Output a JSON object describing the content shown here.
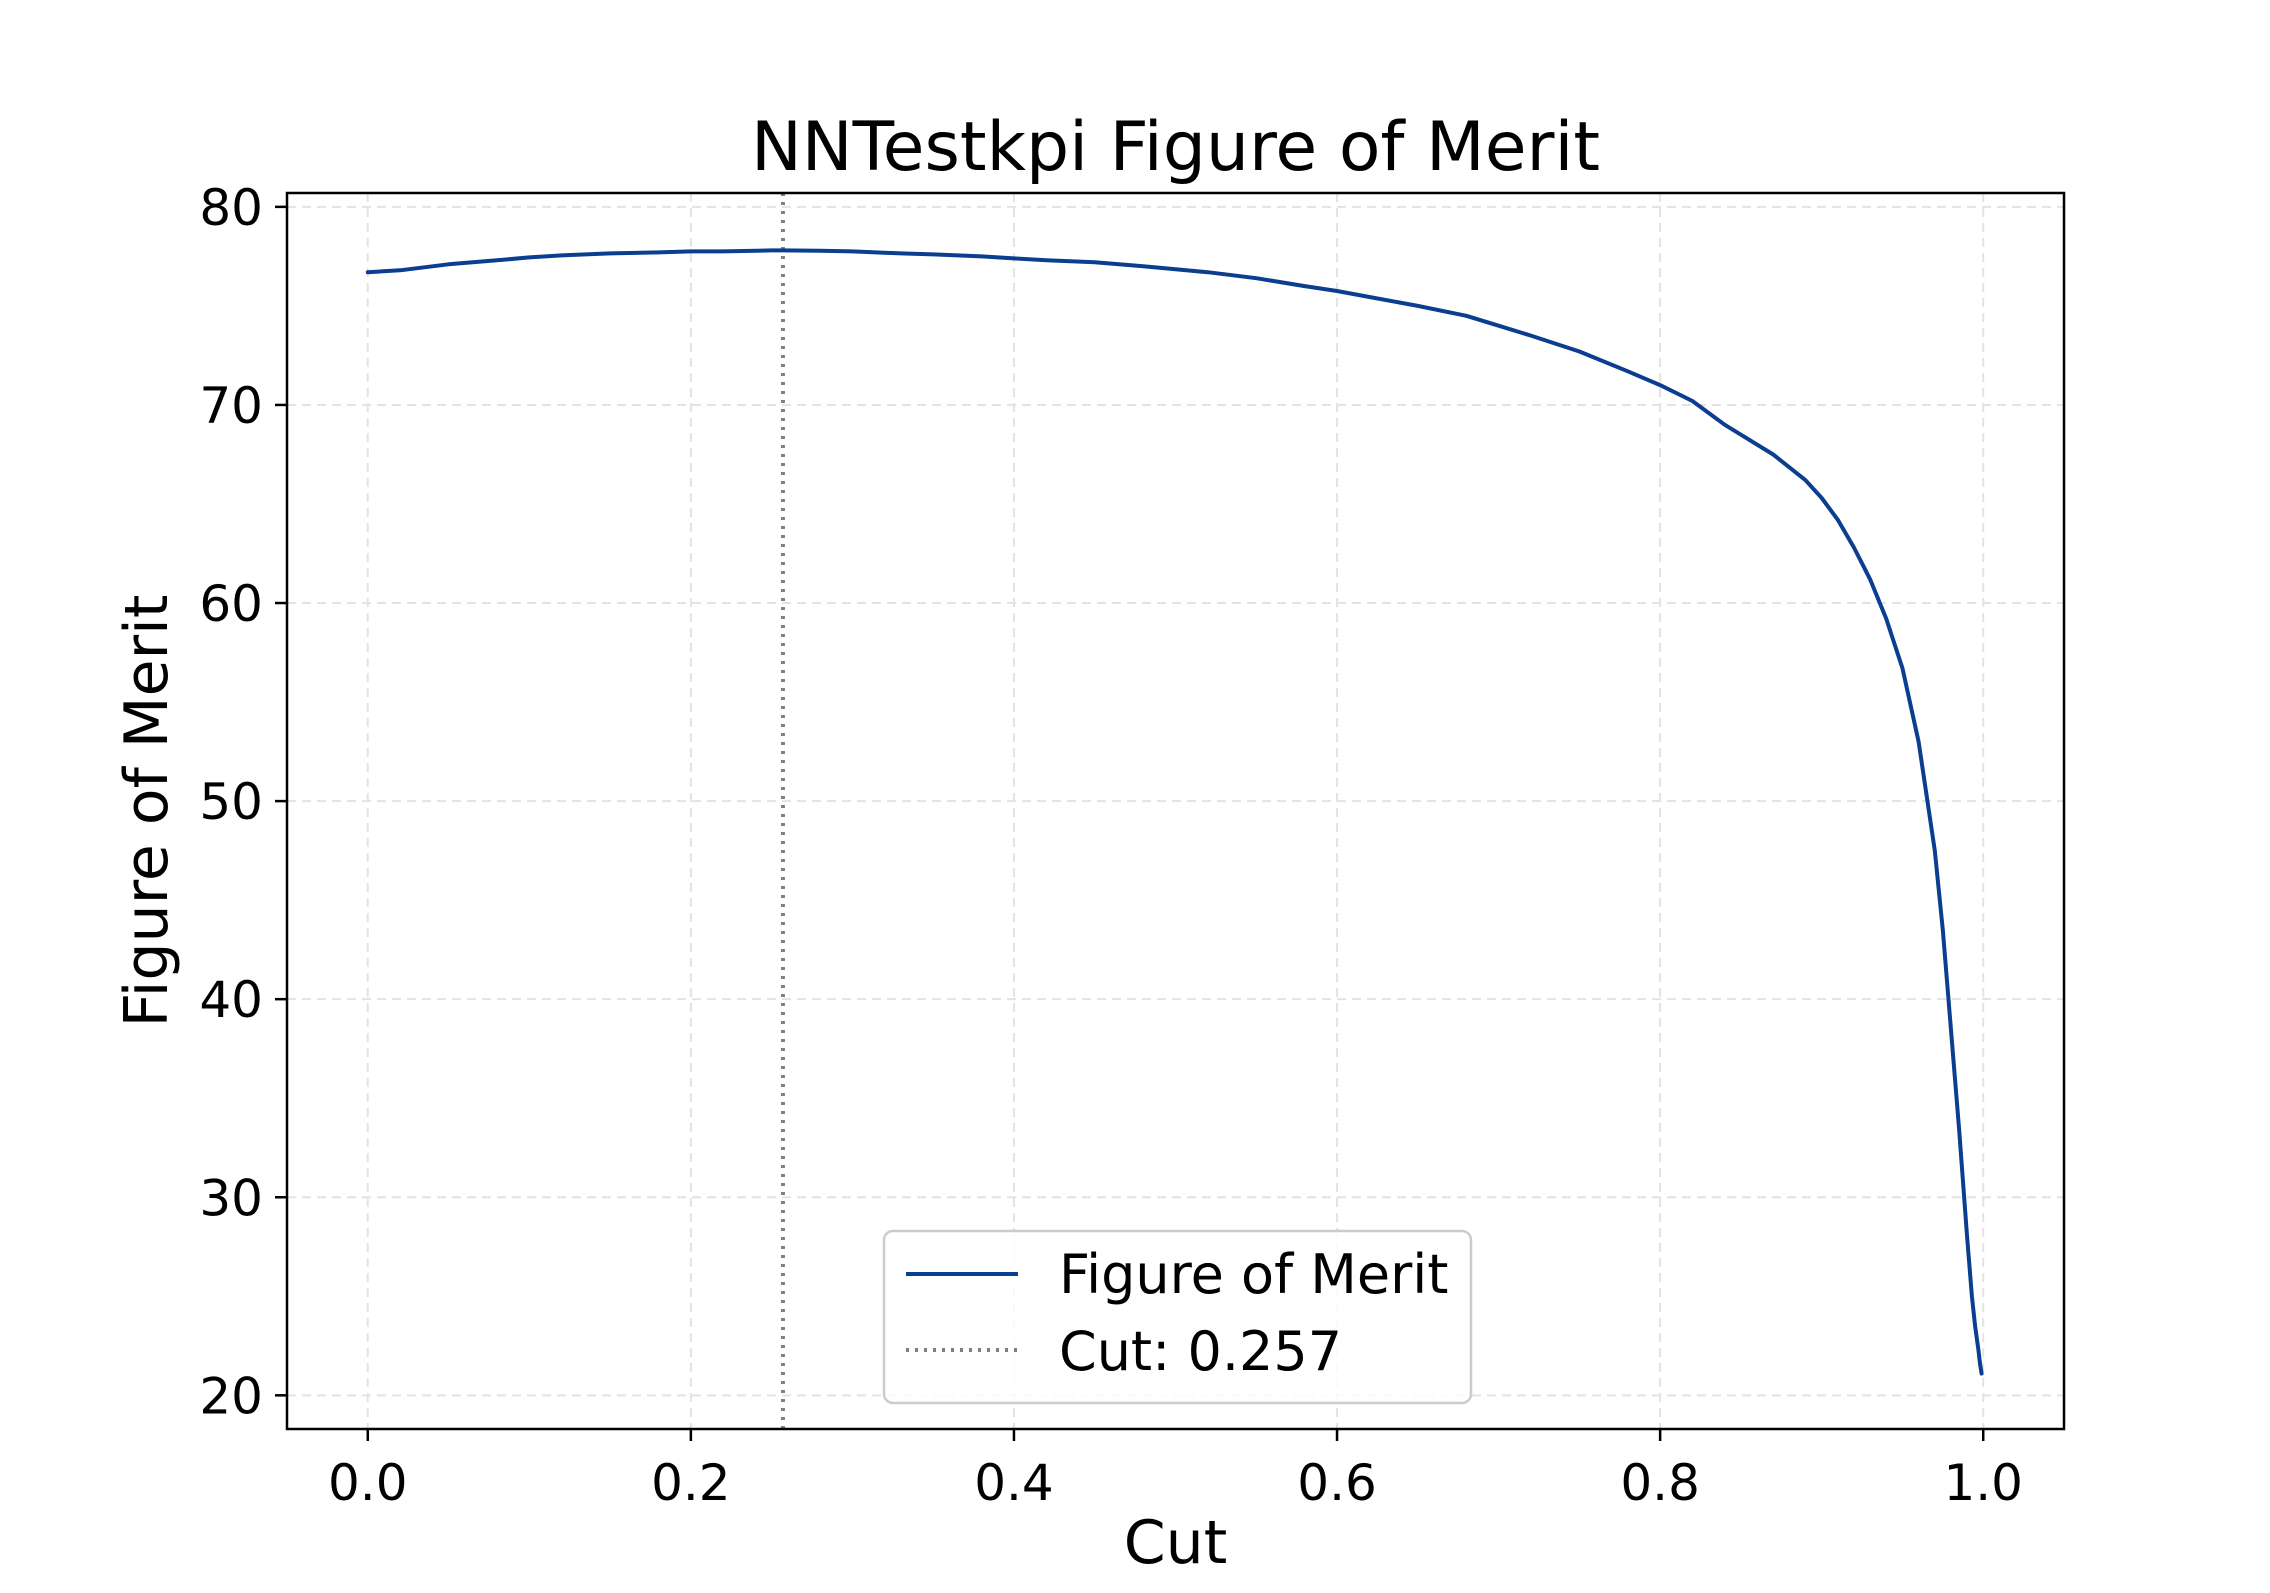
{
  "chart_data": {
    "type": "line",
    "title": "NNTestkpi Figure of Merit",
    "xlabel": "Cut",
    "ylabel": "Figure of Merit",
    "xlim": [
      -0.05,
      1.05
    ],
    "ylim": [
      18.3,
      80.7
    ],
    "xticks": [
      "0.0",
      "0.2",
      "0.4",
      "0.6",
      "0.8",
      "1.0"
    ],
    "xtick_values": [
      0.0,
      0.2,
      0.4,
      0.6,
      0.8,
      1.0
    ],
    "yticks": [
      "20",
      "30",
      "40",
      "50",
      "60",
      "70",
      "80"
    ],
    "ytick_values": [
      20,
      30,
      40,
      50,
      60,
      70,
      80
    ],
    "grid": true,
    "legend_position": "lower-center",
    "colors": {
      "series": "#0b3d91",
      "cut_line": "#808080",
      "grid": "#e3e3e3"
    },
    "series": [
      {
        "name": "Figure of Merit",
        "x": [
          0.0,
          0.02,
          0.05,
          0.08,
          0.1,
          0.12,
          0.15,
          0.18,
          0.2,
          0.22,
          0.25,
          0.257,
          0.28,
          0.3,
          0.33,
          0.35,
          0.38,
          0.4,
          0.42,
          0.45,
          0.48,
          0.5,
          0.52,
          0.55,
          0.58,
          0.6,
          0.62,
          0.65,
          0.68,
          0.7,
          0.72,
          0.75,
          0.78,
          0.8,
          0.82,
          0.84,
          0.85,
          0.87,
          0.89,
          0.9,
          0.91,
          0.92,
          0.93,
          0.94,
          0.95,
          0.96,
          0.97,
          0.975,
          0.98,
          0.985,
          0.99,
          0.993,
          0.995,
          0.997,
          0.998,
          0.999
        ],
        "y": [
          76.7,
          76.8,
          77.1,
          77.3,
          77.45,
          77.55,
          77.65,
          77.7,
          77.75,
          77.75,
          77.8,
          77.8,
          77.78,
          77.75,
          77.65,
          77.6,
          77.5,
          77.4,
          77.3,
          77.2,
          77.0,
          76.85,
          76.7,
          76.4,
          76.0,
          75.75,
          75.45,
          75.0,
          74.5,
          74.0,
          73.5,
          72.7,
          71.7,
          71.0,
          70.2,
          69.0,
          68.5,
          67.5,
          66.2,
          65.3,
          64.2,
          62.8,
          61.2,
          59.2,
          56.7,
          53.0,
          47.5,
          43.5,
          38.5,
          33.5,
          28.0,
          25.0,
          23.5,
          22.3,
          21.6,
          21.1
        ]
      },
      {
        "name": "Cut: 0.257",
        "x_value": 0.257
      }
    ]
  }
}
